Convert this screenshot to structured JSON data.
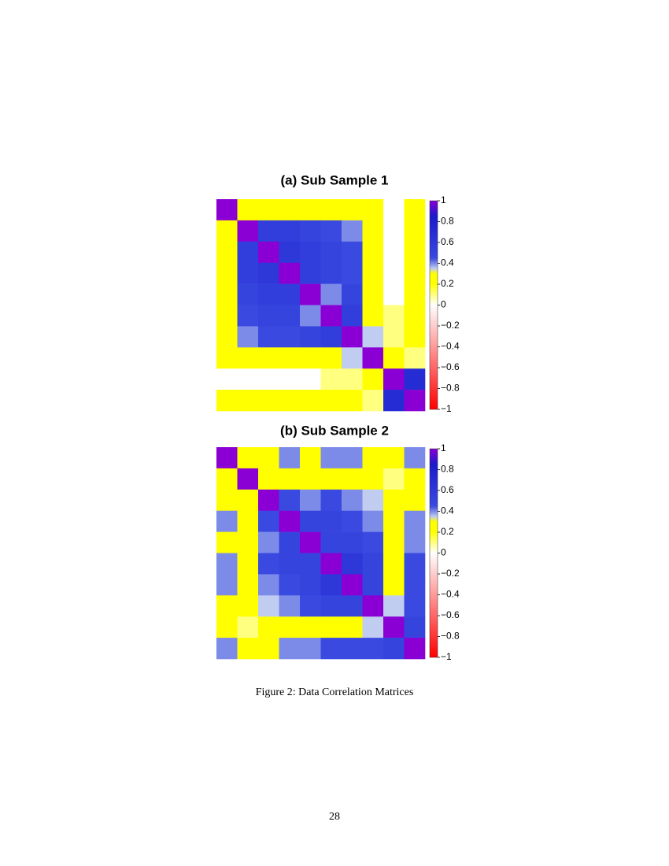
{
  "chart_data": [
    {
      "type": "heatmap",
      "title": "(a) Sub Sample 1",
      "values": [
        [
          1,
          0.3,
          0.2,
          0.2,
          0.2,
          0.2,
          0.2,
          0.2,
          0,
          0.2
        ],
        [
          0.3,
          1,
          0.55,
          0.55,
          0.5,
          0.45,
          0.4,
          0.3,
          0,
          0.2
        ],
        [
          0.2,
          0.55,
          1,
          0.6,
          0.55,
          0.5,
          0.45,
          0.3,
          0,
          0.2
        ],
        [
          0.2,
          0.55,
          0.6,
          1,
          0.55,
          0.5,
          0.45,
          0.3,
          0,
          0.2
        ],
        [
          0.2,
          0.5,
          0.55,
          0.55,
          1,
          0.4,
          0.5,
          0.3,
          0,
          0.2
        ],
        [
          0.2,
          0.45,
          0.5,
          0.5,
          0.4,
          1,
          0.55,
          0.3,
          0.1,
          0.2
        ],
        [
          0.2,
          0.4,
          0.45,
          0.45,
          0.5,
          0.55,
          1,
          0.35,
          0.1,
          0.2
        ],
        [
          0.2,
          0.3,
          0.3,
          0.3,
          0.3,
          0.3,
          0.35,
          1,
          0.2,
          0.1
        ],
        [
          0,
          0,
          0,
          0,
          0,
          0.1,
          0.1,
          0.2,
          1,
          0.7
        ],
        [
          0.2,
          0.2,
          0.2,
          0.2,
          0.2,
          0.2,
          0.2,
          0.1,
          0.7,
          1
        ]
      ],
      "zlim": [
        -1,
        1
      ],
      "zticks": [
        {
          "value": -1,
          "label": "−1"
        },
        {
          "value": -0.8,
          "label": "−0.8"
        },
        {
          "value": -0.6,
          "label": "−0.6"
        },
        {
          "value": -0.4,
          "label": "−0.4"
        },
        {
          "value": -0.2,
          "label": "−0.2"
        },
        0,
        0.2,
        0.4,
        0.6,
        0.8,
        1
      ],
      "colorscale": [
        [
          -1,
          "#ff0000"
        ],
        [
          0,
          "#ffffff"
        ],
        [
          0.2,
          "#ffff00"
        ],
        [
          0.3,
          "#ffff00"
        ],
        [
          0.35,
          "#c0ccf0"
        ],
        [
          0.45,
          "#3a4ae0"
        ],
        [
          0.85,
          "#1a1acc"
        ],
        [
          1,
          "#8a00d4"
        ]
      ]
    },
    {
      "type": "heatmap",
      "title": "(b) Sub Sample 2",
      "values": [
        [
          1,
          0.2,
          0.2,
          0.4,
          0.3,
          0.4,
          0.4,
          0.3,
          0.2,
          0.4
        ],
        [
          0.2,
          1,
          0.2,
          0.2,
          0.2,
          0.2,
          0.2,
          0.2,
          0.1,
          0.2
        ],
        [
          0.2,
          0.2,
          1,
          0.45,
          0.4,
          0.45,
          0.4,
          0.35,
          0.2,
          0.3
        ],
        [
          0.4,
          0.2,
          0.45,
          1,
          0.5,
          0.5,
          0.45,
          0.4,
          0.3,
          0.4
        ],
        [
          0.3,
          0.2,
          0.4,
          0.5,
          1,
          0.5,
          0.5,
          0.45,
          0.3,
          0.4
        ],
        [
          0.4,
          0.2,
          0.45,
          0.5,
          0.5,
          1,
          0.6,
          0.5,
          0.3,
          0.45
        ],
        [
          0.4,
          0.2,
          0.4,
          0.45,
          0.5,
          0.6,
          1,
          0.5,
          0.3,
          0.45
        ],
        [
          0.3,
          0.2,
          0.35,
          0.4,
          0.45,
          0.5,
          0.5,
          1,
          0.35,
          0.45
        ],
        [
          0.2,
          0.1,
          0.2,
          0.3,
          0.3,
          0.3,
          0.3,
          0.35,
          1,
          0.5
        ],
        [
          0.4,
          0.2,
          0.3,
          0.4,
          0.4,
          0.45,
          0.45,
          0.45,
          0.5,
          1
        ]
      ],
      "zlim": [
        -1,
        1
      ],
      "zticks": [
        {
          "value": -1,
          "label": "−1"
        },
        {
          "value": -0.8,
          "label": "−0.8"
        },
        {
          "value": -0.6,
          "label": "−0.6"
        },
        {
          "value": -0.4,
          "label": "−0.4"
        },
        {
          "value": -0.2,
          "label": "−0.2"
        },
        0,
        0.2,
        0.4,
        0.6,
        0.8,
        1
      ],
      "colorscale": [
        [
          -1,
          "#ff0000"
        ],
        [
          0,
          "#ffffff"
        ],
        [
          0.2,
          "#ffff00"
        ],
        [
          0.3,
          "#ffff00"
        ],
        [
          0.35,
          "#c0ccf0"
        ],
        [
          0.45,
          "#3a4ae0"
        ],
        [
          0.85,
          "#1a1acc"
        ],
        [
          1,
          "#8a00d4"
        ]
      ]
    }
  ],
  "caption": "Figure 2: Data Correlation Matrices",
  "page_number": "28"
}
